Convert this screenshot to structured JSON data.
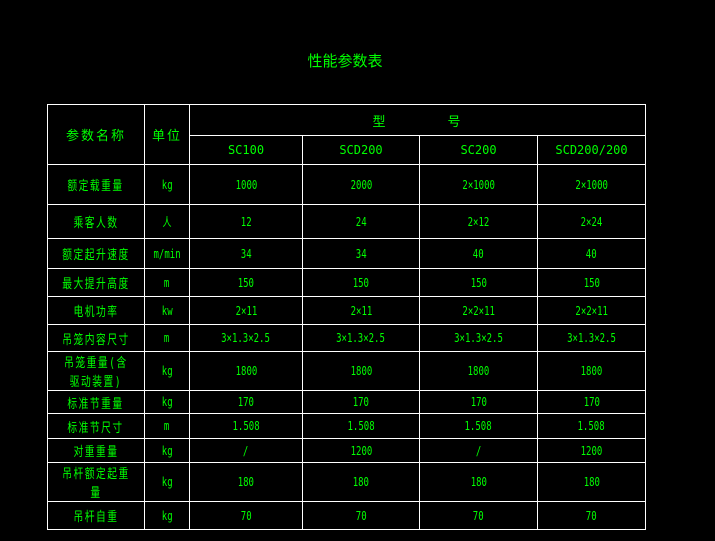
{
  "title": "性能参数表",
  "header": {
    "param_name": "参数名称",
    "unit": "单位",
    "model": "型　　　　号",
    "models": [
      "SC100",
      "SCD200",
      "SC200",
      "SCD200/200"
    ]
  },
  "rows": [
    {
      "name": "额定载重量",
      "unit": "kg",
      "values": [
        "1000",
        "2000",
        "2×1000",
        "2×1000"
      ]
    },
    {
      "name": "乘客人数",
      "unit": "人",
      "values": [
        "12",
        "24",
        "2×12",
        "2×24"
      ]
    },
    {
      "name": "额定起升速度",
      "unit": "m/min",
      "values": [
        "34",
        "34",
        "40",
        "40"
      ]
    },
    {
      "name": "最大提升高度",
      "unit": "m",
      "values": [
        "150",
        "150",
        "150",
        "150"
      ]
    },
    {
      "name": "电机功率",
      "unit": "kw",
      "values": [
        "2×11",
        "2×11",
        "2×2×11",
        "2×2×11"
      ]
    },
    {
      "name": "吊笼内容尺寸",
      "unit": "m",
      "values": [
        "3×1.3×2.5",
        "3×1.3×2.5",
        "3×1.3×2.5",
        "3×1.3×2.5"
      ]
    },
    {
      "name": "吊笼重量(含驱动装置)",
      "unit": "kg",
      "values": [
        "1800",
        "1800",
        "1800",
        "1800"
      ]
    },
    {
      "name": "标准节重量",
      "unit": "kg",
      "values": [
        "170",
        "170",
        "170",
        "170"
      ]
    },
    {
      "name": "标准节尺寸",
      "unit": "m",
      "values": [
        "1.508",
        "1.508",
        "1.508",
        "1.508"
      ]
    },
    {
      "name": "对重重量",
      "unit": "kg",
      "values": [
        "/",
        "1200",
        "/",
        "1200"
      ]
    },
    {
      "name": "吊杆额定起重量",
      "unit": "kg",
      "values": [
        "180",
        "180",
        "180",
        "180"
      ]
    },
    {
      "name": "吊杆自重",
      "unit": "kg",
      "values": [
        "70",
        "70",
        "70",
        "70"
      ]
    }
  ]
}
